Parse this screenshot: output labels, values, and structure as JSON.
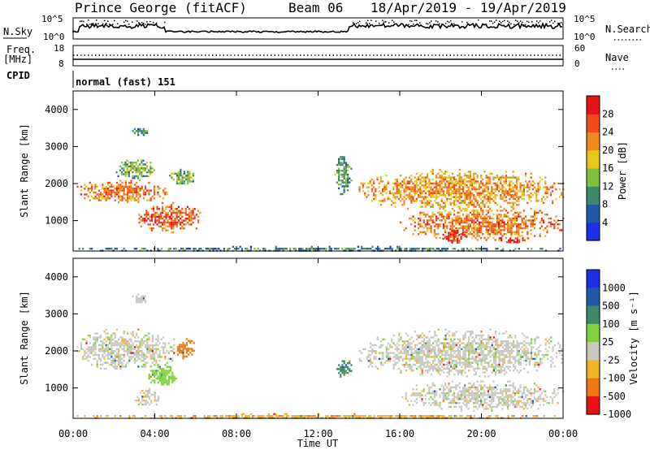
{
  "header": {
    "station": "Prince George (fitACF)",
    "beam": "Beam 06",
    "date_range": "18/Apr/2019 - 19/Apr/2019"
  },
  "noise_panel": {
    "left_label": "N.Sky",
    "right_label": "N.Search",
    "left_ticks": [
      "10^5",
      "10^0"
    ],
    "right_ticks": [
      "10^5",
      "10^0"
    ],
    "line_color": "#000000"
  },
  "freq_panel": {
    "left_label_1": "Freq.",
    "left_label_2": "[MHz]",
    "right_label": "Nave",
    "left_ticks": [
      "18",
      "8"
    ],
    "right_ticks": [
      "60",
      "0"
    ],
    "freq_value_mhz": 10,
    "nave_value": 30
  },
  "cpid": {
    "label": "CPID",
    "text": "normal (fast) 151"
  },
  "x_axis": {
    "label": "Time UT",
    "ticks": [
      "00:00",
      "04:00",
      "08:00",
      "12:00",
      "16:00",
      "20:00",
      "00:00"
    ],
    "range_hours": [
      0,
      24
    ]
  },
  "power_panel": {
    "ylabel": "Slant Range [km]",
    "yticks": [
      "4000",
      "3000",
      "2000",
      "1000"
    ],
    "colorbar_label": "Power [dB]",
    "colorbar_ticks": [
      "28",
      "24",
      "20",
      "16",
      "12",
      "8",
      "4"
    ],
    "colors": [
      "#1c2fe6",
      "#1f5aa8",
      "#3c8a6a",
      "#7fbf3c",
      "#e6c81a",
      "#f08a1a",
      "#f04a1a",
      "#e61414"
    ]
  },
  "velocity_panel": {
    "ylabel": "Slant Range [km]",
    "yticks": [
      "4000",
      "3000",
      "2000",
      "1000"
    ],
    "colorbar_label": "Velocity [m s⁻¹]",
    "colorbar_ticks": [
      "1000",
      "500",
      "100",
      "25",
      "-25",
      "-100",
      "-500",
      "-1000"
    ],
    "colors": [
      "#1c2fe6",
      "#1f5aa8",
      "#3c8a6a",
      "#7fd23c",
      "#c8c8c0",
      "#f0b428",
      "#f07814",
      "#e61414"
    ]
  },
  "chart_data": [
    {
      "type": "heatmap",
      "title": "Power [dB]",
      "xlabel": "Time UT",
      "ylabel": "Slant Range [km]",
      "xlim": [
        0,
        24
      ],
      "ylim": [
        180,
        4500
      ],
      "clim": [
        0,
        30
      ],
      "echo_regions": [
        {
          "t": [
            0.0,
            4.6
          ],
          "r": [
            1500,
            2100
          ],
          "value": 20
        },
        {
          "t": [
            2.0,
            4.0
          ],
          "r": [
            2100,
            2700
          ],
          "value": 10
        },
        {
          "t": [
            2.8,
            3.7
          ],
          "r": [
            3300,
            3550
          ],
          "value": 6
        },
        {
          "t": [
            3.2,
            6.3
          ],
          "r": [
            700,
            1500
          ],
          "value": 22
        },
        {
          "t": [
            4.7,
            5.9
          ],
          "r": [
            2000,
            2400
          ],
          "value": 10
        },
        {
          "t": [
            12.8,
            13.6
          ],
          "r": [
            1700,
            2900
          ],
          "value": 8
        },
        {
          "t": [
            13.9,
            24.0
          ],
          "r": [
            1300,
            2400
          ],
          "value": 18
        },
        {
          "t": [
            16.0,
            24.0
          ],
          "r": [
            500,
            1400
          ],
          "value": 20
        },
        {
          "t": [
            18.0,
            19.3
          ],
          "r": [
            400,
            800
          ],
          "value": 26
        },
        {
          "t": [
            20.5,
            22.3
          ],
          "r": [
            400,
            600
          ],
          "value": 24
        },
        {
          "t": [
            0.0,
            24.0
          ],
          "r": [
            180,
            320
          ],
          "value": 6
        }
      ]
    },
    {
      "type": "heatmap",
      "title": "Velocity [m s⁻¹]",
      "xlabel": "Time UT",
      "ylabel": "Slant Range [km]",
      "xlim": [
        0,
        24
      ],
      "ylim": [
        180,
        4500
      ],
      "clim": [
        -1000,
        1000
      ],
      "echo_regions": [
        {
          "t": [
            0.0,
            5.0
          ],
          "r": [
            1500,
            2600
          ],
          "value": 0
        },
        {
          "t": [
            2.8,
            3.7
          ],
          "r": [
            3300,
            3550
          ],
          "value": 0
        },
        {
          "t": [
            3.6,
            5.1
          ],
          "r": [
            1000,
            1700
          ],
          "value": 60
        },
        {
          "t": [
            5.0,
            5.9
          ],
          "r": [
            1800,
            2400
          ],
          "value": -300
        },
        {
          "t": [
            3.0,
            4.2
          ],
          "r": [
            500,
            1000
          ],
          "value": 0
        },
        {
          "t": [
            12.8,
            13.7
          ],
          "r": [
            1300,
            1800
          ],
          "value": 150
        },
        {
          "t": [
            14.0,
            24.0
          ],
          "r": [
            1300,
            2600
          ],
          "value": 0
        },
        {
          "t": [
            16.0,
            24.0
          ],
          "r": [
            400,
            1200
          ],
          "value": 0
        },
        {
          "t": [
            0.0,
            24.0
          ],
          "r": [
            180,
            320
          ],
          "value": -80
        }
      ]
    }
  ]
}
